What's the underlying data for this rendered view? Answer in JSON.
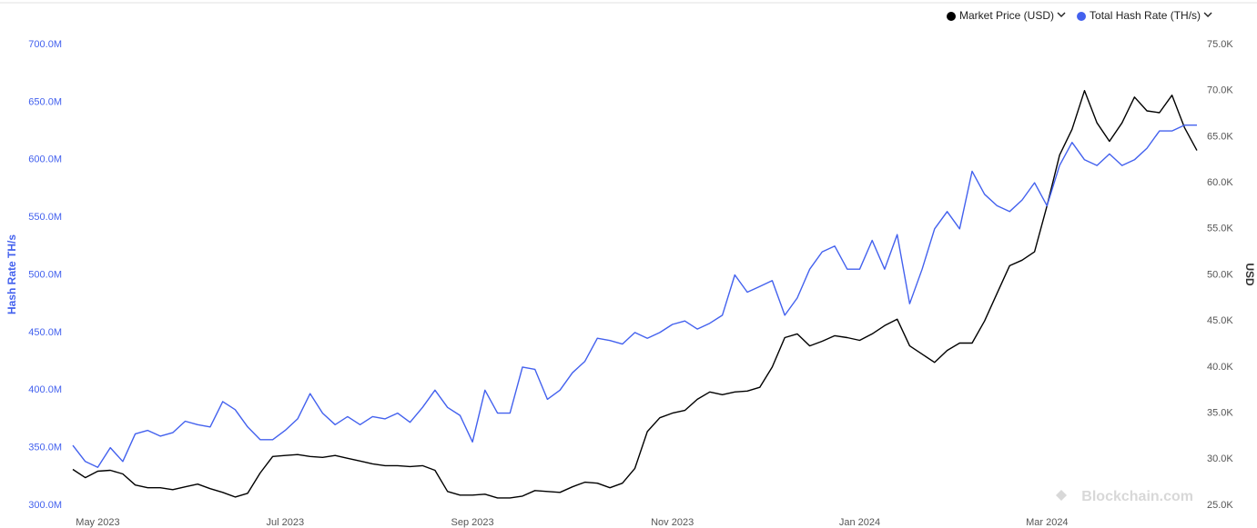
{
  "chart_data": {
    "type": "line",
    "categories": [
      null,
      null,
      "May 2023",
      null,
      null,
      null,
      null,
      null,
      null,
      null,
      null,
      null,
      null,
      null,
      null,
      null,
      null,
      "Jul 2023",
      null,
      null,
      null,
      null,
      null,
      null,
      null,
      null,
      null,
      null,
      null,
      null,
      null,
      null,
      "Sep 2023",
      null,
      null,
      null,
      null,
      null,
      null,
      null,
      null,
      null,
      null,
      null,
      null,
      null,
      null,
      null,
      "Nov 2023",
      null,
      null,
      null,
      null,
      null,
      null,
      null,
      null,
      null,
      null,
      null,
      null,
      null,
      null,
      "Jan 2024",
      null,
      null,
      null,
      null,
      null,
      null,
      null,
      null,
      null,
      null,
      null,
      null,
      null,
      null,
      "Mar 2024",
      null,
      null,
      null,
      null,
      null,
      null,
      null,
      null,
      null,
      null,
      null,
      null
    ],
    "series": [
      {
        "name": "Market Price (USD)",
        "color": "#000000",
        "axis": "y2",
        "values": [
          28900,
          28000,
          28700,
          28800,
          28400,
          27200,
          26900,
          26900,
          26700,
          27000,
          27300,
          26800,
          26400,
          25900,
          26300,
          28500,
          30300,
          30400,
          30500,
          30300,
          30200,
          30400,
          30100,
          29800,
          29500,
          29300,
          29300,
          29200,
          29300,
          28800,
          26500,
          26100,
          26100,
          26200,
          25800,
          25800,
          26000,
          26600,
          26500,
          26400,
          27000,
          27500,
          27400,
          26900,
          27400,
          29000,
          33000,
          34500,
          35000,
          35300,
          36500,
          37300,
          37000,
          37300,
          37400,
          37800,
          40000,
          43200,
          43600,
          42300,
          42800,
          43400,
          43200,
          42900,
          43600,
          44500,
          45200,
          42300,
          41400,
          40500,
          41800,
          42600,
          42600,
          45000,
          48000,
          51000,
          51600,
          52500,
          57500,
          63000,
          65800,
          70000,
          66500,
          64500,
          66500,
          69300,
          67800,
          67600,
          69500,
          66000,
          63500
        ]
      },
      {
        "name": "Total Hash Rate (TH/s)",
        "color": "#4361ee",
        "axis": "y",
        "values": [
          352000000.0,
          338000000.0,
          333000000.0,
          350000000.0,
          338000000.0,
          362000000.0,
          365000000.0,
          360000000.0,
          363000000.0,
          373000000.0,
          370000000.0,
          368000000.0,
          390000000.0,
          383000000.0,
          368000000.0,
          357000000.0,
          357000000.0,
          365000000.0,
          375000000.0,
          397000000.0,
          380000000.0,
          370000000.0,
          377000000.0,
          370000000.0,
          377000000.0,
          375000000.0,
          380000000.0,
          372000000.0,
          385000000.0,
          400000000.0,
          385000000.0,
          378000000.0,
          355000000.0,
          400000000.0,
          380000000.0,
          380000000.0,
          420000000.0,
          418000000.0,
          392000000.0,
          400000000.0,
          415000000.0,
          425000000.0,
          445000000.0,
          443000000.0,
          440000000.0,
          450000000.0,
          445000000.0,
          450000000.0,
          457000000.0,
          460000000.0,
          453000000.0,
          458000000.0,
          465000000.0,
          500000000.0,
          485000000.0,
          490000000.0,
          495000000.0,
          465000000.0,
          480000000.0,
          505000000.0,
          520000000.0,
          525000000.0,
          505000000.0,
          505000000.0,
          530000000.0,
          505000000.0,
          535000000.0,
          475000000.0,
          505000000.0,
          540000000.0,
          555000000.0,
          540000000.0,
          590000000.0,
          570000000.0,
          560000000.0,
          555000000.0,
          565000000.0,
          580000000.0,
          560000000.0,
          595000000.0,
          615000000.0,
          600000000.0,
          595000000.0,
          605000000.0,
          595000000.0,
          600000000.0,
          610000000.0,
          625000000.0,
          625000000.0,
          630000000.0,
          630000000.0
        ]
      }
    ],
    "y_label": "Hash Rate TH/s",
    "y2_label": "USD",
    "ylim": [
      300000000,
      700000000
    ],
    "yticks": [
      {
        "value": 300000000,
        "label": "300.0M"
      },
      {
        "value": 350000000,
        "label": "350.0M"
      },
      {
        "value": 400000000,
        "label": "400.0M"
      },
      {
        "value": 450000000,
        "label": "450.0M"
      },
      {
        "value": 500000000,
        "label": "500.0M"
      },
      {
        "value": 550000000,
        "label": "550.0M"
      },
      {
        "value": 600000000,
        "label": "600.0M"
      },
      {
        "value": 650000000,
        "label": "650.0M"
      },
      {
        "value": 700000000,
        "label": "700.0M"
      }
    ],
    "y2lim": [
      25000,
      75000
    ],
    "y2ticks": [
      {
        "value": 25000,
        "label": "25.0K"
      },
      {
        "value": 30000,
        "label": "30.0K"
      },
      {
        "value": 35000,
        "label": "35.0K"
      },
      {
        "value": 40000,
        "label": "40.0K"
      },
      {
        "value": 45000,
        "label": "45.0K"
      },
      {
        "value": 50000,
        "label": "50.0K"
      },
      {
        "value": 55000,
        "label": "55.0K"
      },
      {
        "value": 60000,
        "label": "60.0K"
      },
      {
        "value": 65000,
        "label": "65.0K"
      },
      {
        "value": 70000,
        "label": "70.0K"
      },
      {
        "value": 75000,
        "label": "75.0K"
      }
    ],
    "grid": false,
    "legend": "top-right",
    "watermark": "Blockchain.com"
  }
}
